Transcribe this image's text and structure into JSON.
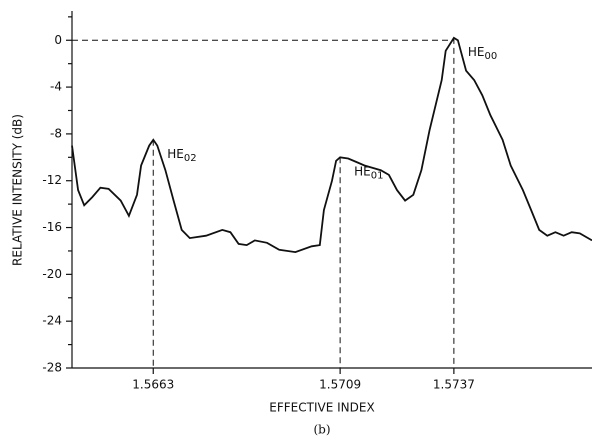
{
  "chart_data": {
    "type": "line",
    "x_label": "EFFECTIVE INDEX",
    "y_label": "RELATIVE INTENSITY (dB)",
    "caption": "(b)",
    "x": [
      1.5643,
      1.56445,
      1.5646,
      1.5648,
      1.565,
      1.5652,
      1.5655,
      1.5657,
      1.5659,
      1.566,
      1.5662,
      1.5663,
      1.5664,
      1.5666,
      1.5668,
      1.567,
      1.5672,
      1.5676,
      1.568,
      1.5682,
      1.5684,
      1.5686,
      1.5688,
      1.5691,
      1.5694,
      1.5698,
      1.5702,
      1.5704,
      1.5705,
      1.5707,
      1.5708,
      1.5709,
      1.5711,
      1.5713,
      1.5715,
      1.5719,
      1.5721,
      1.5723,
      1.5725,
      1.5727,
      1.5729,
      1.5731,
      1.5734,
      1.5735,
      1.5737,
      1.5738,
      1.5739,
      1.574,
      1.5742,
      1.5744,
      1.5746,
      1.5749,
      1.5751,
      1.5754,
      1.5756,
      1.5758,
      1.576,
      1.5762,
      1.5764,
      1.5766,
      1.5768,
      1.5771
    ],
    "series": [
      {
        "color": "#111111",
        "values": [
          -9.0,
          -12.8,
          -14.1,
          -13.4,
          -12.6,
          -12.7,
          -13.7,
          -15.0,
          -13.2,
          -10.7,
          -9.0,
          -8.5,
          -9.0,
          -11.1,
          -13.7,
          -16.2,
          -16.9,
          -16.7,
          -16.2,
          -16.4,
          -17.4,
          -17.5,
          -17.1,
          -17.3,
          -17.9,
          -18.1,
          -17.6,
          -17.5,
          -14.5,
          -12.0,
          -10.3,
          -10.0,
          -10.1,
          -10.4,
          -10.7,
          -11.1,
          -11.5,
          -12.8,
          -13.7,
          -13.2,
          -11.1,
          -7.7,
          -3.4,
          -0.9,
          0.2,
          0.0,
          -1.3,
          -2.6,
          -3.4,
          -4.7,
          -6.4,
          -8.5,
          -10.7,
          -12.8,
          -14.5,
          -16.2,
          -16.7,
          -16.4,
          -16.7,
          -16.4,
          -16.5,
          -17.1
        ]
      }
    ],
    "xlim": [
      1.5643,
      1.5771
    ],
    "xticks": [
      1.5663,
      1.5709,
      1.5737
    ],
    "ylim": [
      -28,
      2.5
    ],
    "yticks": [
      0,
      -4,
      -8,
      -12,
      -16,
      -20,
      -24,
      -28
    ],
    "yminorticks": [
      2,
      -2,
      -6,
      -10,
      -14,
      -18,
      -22,
      -26
    ],
    "peaks": [
      {
        "text": "HE",
        "sub": "02",
        "x": 1.5663,
        "y": -8.5
      },
      {
        "text": "HE",
        "sub": "01",
        "x": 1.5709,
        "y": -10.0
      },
      {
        "text": "HE",
        "sub": "00",
        "x": 1.5737,
        "y": 0.2
      }
    ]
  }
}
